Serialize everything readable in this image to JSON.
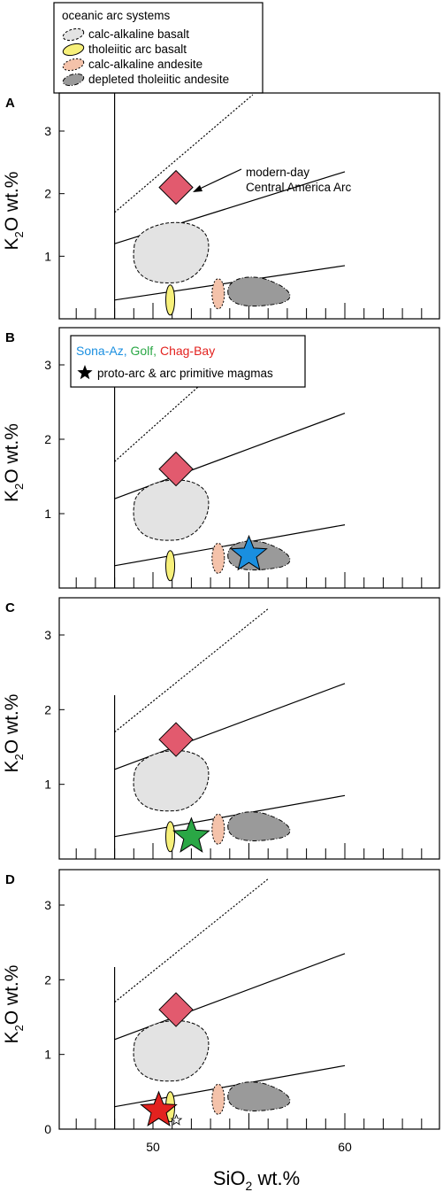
{
  "legend": {
    "title": "oceanic arc systems",
    "items": [
      {
        "label": "calc-alkaline basalt",
        "fill": "#e3e3e3",
        "stroke": "#000000",
        "dash": "3,2"
      },
      {
        "label": "tholeiitic arc basalt",
        "fill": "#f7f07a",
        "stroke": "#000000",
        "dash": ""
      },
      {
        "label": "calc-alkaline andesite",
        "fill": "#f4c2aa",
        "stroke": "#000000",
        "dash": "2,2"
      },
      {
        "label": "depleted tholeiitic andesite",
        "fill": "#9a9a9a",
        "stroke": "#000000",
        "dash": "5,2,1,2"
      }
    ]
  },
  "colors": {
    "diamond": "#e25a6e",
    "sona": "#1a8fe0",
    "golf": "#2aa745",
    "chag": "#e3221f"
  },
  "legend2": {
    "sona_label": "Sona-Az,",
    "golf_label": "Golf,",
    "chag_label": "Chag-Bay",
    "star_label": "proto-arc & arc primitive magmas"
  },
  "panel_labels": [
    "A",
    "B",
    "C",
    "D"
  ],
  "annotation": {
    "line1": "modern-day",
    "line2": "Central America Arc"
  },
  "ylabel": {
    "main": "K",
    "sub": "2",
    "rest": "O wt.%"
  },
  "xlabel": {
    "main": "SiO",
    "sub": "2",
    "rest": " wt.%"
  },
  "chart_data": {
    "type": "scatter",
    "xlabel": "SiO2 wt.%",
    "ylabel": "K2O wt.%",
    "xlim": [
      45,
      65
    ],
    "ylim": [
      0,
      3.5
    ],
    "xticks": [
      50,
      60
    ],
    "yticks": [
      1,
      2,
      3
    ],
    "boundary_lines": [
      {
        "x": [
          48,
          60
        ],
        "y": [
          0.3,
          0.85
        ]
      },
      {
        "x": [
          48,
          60
        ],
        "y": [
          1.2,
          2.35
        ]
      },
      {
        "x": [
          48,
          56
        ],
        "y": [
          1.7,
          3.35
        ]
      }
    ],
    "vertical_line_x": 48,
    "fields": [
      {
        "name": "calc-alkaline basalt",
        "center": [
          51,
          1.0
        ]
      },
      {
        "name": "tholeiitic arc basalt",
        "center": [
          50.9,
          0.3
        ]
      },
      {
        "name": "calc-alkaline andesite",
        "center": [
          53.4,
          0.4
        ]
      },
      {
        "name": "depleted tholeiitic andesite",
        "center": [
          55.3,
          0.45
        ]
      }
    ],
    "modern_day_central_america_arc": {
      "x": 51.2,
      "y": 1.6
    },
    "primitive_magmas": [
      {
        "name": "Sona-Az",
        "panel": "B",
        "x": 55.0,
        "y": 0.45
      },
      {
        "name": "Golf",
        "panel": "C",
        "x": 52.0,
        "y": 0.3
      },
      {
        "name": "Chag-Bay",
        "panel": "D",
        "x": 50.3,
        "y": 0.25
      }
    ]
  }
}
